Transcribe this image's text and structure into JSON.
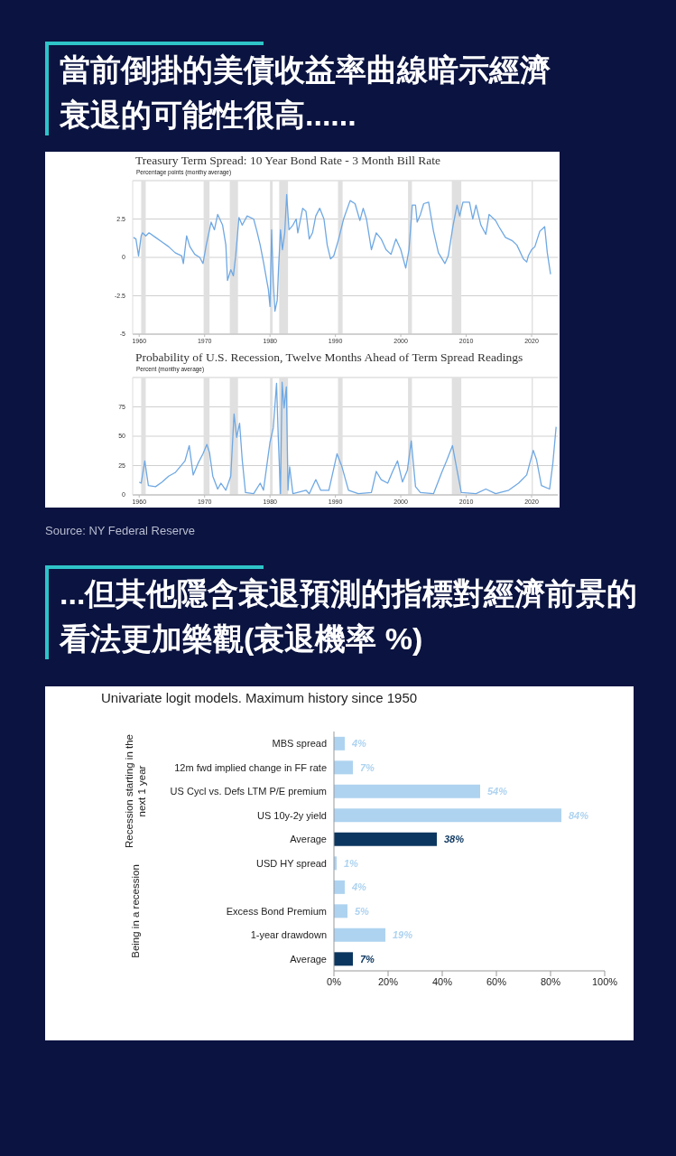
{
  "chart_data": [
    {
      "type": "line",
      "title": "當前倒掛的美債收益率曲線暗示經濟衰退的可能性很高......",
      "subtitle": "Treasury Term Spread: 10 Year Bond Rate - 3 Month Bill Rate",
      "ylabel": "Percentage points (monthy average)",
      "x": [
        1959.1,
        1959.5,
        1959.9,
        1960.3,
        1960.5,
        1961,
        1961.5,
        1962.5,
        1963.5,
        1964.5,
        1965.5,
        1966.5,
        1966.75,
        1967.25,
        1967.75,
        1968.5,
        1969.25,
        1969.75,
        1970.25,
        1971,
        1971.5,
        1972,
        1972.75,
        1973.25,
        1973.5,
        1974,
        1974.4,
        1974.75,
        1975.25,
        1975.75,
        1976.5,
        1977.5,
        1978,
        1978.5,
        1979,
        1979.75,
        1980,
        1980.25,
        1980.5,
        1980.75,
        1981.1,
        1981.3,
        1981.6,
        1981.9,
        1982.25,
        1982.55,
        1982.9,
        1983.5,
        1984,
        1984.25,
        1985,
        1985.5,
        1986,
        1986.5,
        1987,
        1987.6,
        1988.25,
        1988.75,
        1989.25,
        1989.75,
        1990.5,
        1991.25,
        1992.25,
        1993,
        1993.75,
        1994.25,
        1994.75,
        1995.5,
        1996.25,
        1997,
        1997.75,
        1998.5,
        1999.25,
        2000,
        2000.75,
        2001.25,
        2001.75,
        2002.25,
        2002.5,
        2003,
        2003.5,
        2004.25,
        2005,
        2005.75,
        2006.75,
        2007.25,
        2008,
        2008.6,
        2009,
        2009.5,
        2010.5,
        2011,
        2011.5,
        2012.25,
        2013,
        2013.5,
        2014.5,
        2015,
        2016,
        2017,
        2017.75,
        2018.75,
        2019.25,
        2019.5,
        2020,
        2020.5,
        2021.25,
        2022,
        2022.4,
        2022.9
      ],
      "series": [
        {
          "color": "#6fa8e3",
          "values": [
            1.3,
            1.2,
            0.1,
            1.4,
            1.6,
            1.4,
            1.6,
            1.3,
            1.0,
            0.7,
            0.3,
            0.1,
            -0.4,
            1.4,
            0.7,
            0.2,
            0.0,
            -0.4,
            0.8,
            2.3,
            1.8,
            2.8,
            2.1,
            0.8,
            -1.5,
            -0.8,
            -1.2,
            0.1,
            2.6,
            2.1,
            2.7,
            2.5,
            1.7,
            0.8,
            -0.3,
            -2.1,
            -3.2,
            1.8,
            -1.6,
            -3.5,
            -2.8,
            -0.8,
            1.8,
            0.5,
            1.6,
            4.1,
            1.8,
            2.1,
            2.5,
            1.6,
            3.2,
            3.0,
            1.2,
            1.6,
            2.7,
            3.2,
            2.5,
            0.8,
            -0.1,
            0.1,
            1.2,
            2.5,
            3.7,
            3.5,
            2.4,
            3.2,
            2.5,
            0.5,
            1.6,
            1.2,
            0.5,
            0.2,
            1.2,
            0.5,
            -0.7,
            0.5,
            3.4,
            3.4,
            2.3,
            2.8,
            3.5,
            3.6,
            1.7,
            0.3,
            -0.4,
            0.1,
            2.1,
            3.4,
            2.7,
            3.6,
            3.6,
            2.5,
            3.4,
            2.1,
            1.5,
            2.8,
            2.4,
            2.0,
            1.3,
            1.1,
            0.8,
            -0.1,
            -0.3,
            0.1,
            0.5,
            0.7,
            1.7,
            2.0,
            0.3,
            -1.1
          ]
        }
      ],
      "xlim": [
        1959,
        2024
      ],
      "xticks": [
        1960,
        1970,
        1980,
        1990,
        2000,
        2010,
        2020
      ],
      "ylim": [
        -5,
        5
      ],
      "yticks": [
        -5,
        -2.5,
        0,
        2.5
      ],
      "grid": "y",
      "bands": [
        {
          "axis": "x",
          "from": 1960.3,
          "to": 1961.0,
          "color": "#e0e0e0"
        },
        {
          "axis": "x",
          "from": 1969.85,
          "to": 1970.75,
          "color": "#e0e0e0"
        },
        {
          "axis": "x",
          "from": 1973.85,
          "to": 1975.1,
          "color": "#e0e0e0"
        },
        {
          "axis": "x",
          "from": 1980.0,
          "to": 1980.4,
          "color": "#e0e0e0"
        },
        {
          "axis": "x",
          "from": 1981.4,
          "to": 1982.75,
          "color": "#e0e0e0"
        },
        {
          "axis": "x",
          "from": 1990.4,
          "to": 1991.1,
          "color": "#e0e0e0"
        },
        {
          "axis": "x",
          "from": 2001.1,
          "to": 2001.7,
          "color": "#e0e0e0"
        },
        {
          "axis": "x",
          "from": 2007.8,
          "to": 2009.25,
          "color": "#e0e0e0"
        },
        {
          "axis": "x",
          "from": 2020.0,
          "to": 2020.2,
          "color": "#e0e0e0"
        }
      ]
    },
    {
      "type": "line",
      "title": "Probability of U.S. Recession, Twelve Months Ahead of Term Spread Readings",
      "ylabel": "Percent (monthy average)",
      "x": [
        1960,
        1960.3,
        1960.85,
        1961.4,
        1962.5,
        1963.5,
        1964.5,
        1965.5,
        1966.25,
        1967,
        1967.65,
        1968.25,
        1969,
        1969.75,
        1970.35,
        1970.75,
        1971.25,
        1972,
        1972.5,
        1973.25,
        1974,
        1974.5,
        1974.9,
        1975.35,
        1975.75,
        1976.25,
        1977.5,
        1978.5,
        1979,
        1980,
        1980.5,
        1981,
        1981.25,
        1981.6,
        1981.85,
        1982.15,
        1982.5,
        1982.75,
        1983,
        1983.5,
        1985.5,
        1986,
        1987,
        1987.75,
        1989,
        1990.25,
        1991,
        1992,
        1993.5,
        1995.5,
        1996.25,
        1997,
        1998,
        1998.75,
        1999.5,
        2000.25,
        2001,
        2001.6,
        2002.25,
        2003,
        2005,
        2006.25,
        2007,
        2007.9,
        2008.5,
        2009.25,
        2011.5,
        2013,
        2014.5,
        2016.5,
        2018,
        2019.25,
        2020.25,
        2020.75,
        2021.5,
        2022.75,
        2023.25,
        2023.75
      ],
      "series": [
        {
          "color": "#6fa8e3",
          "values": [
            11,
            10,
            29,
            8,
            7,
            11,
            16,
            19,
            24,
            29,
            42,
            17,
            27,
            35,
            43,
            36,
            16,
            5,
            10,
            4,
            16,
            69,
            49,
            61,
            30,
            2,
            1,
            10,
            4,
            45,
            57,
            95,
            51,
            1,
            96,
            74,
            92,
            4,
            24,
            1,
            4,
            1,
            13,
            4,
            4,
            35,
            24,
            4,
            1,
            2,
            20,
            13,
            10,
            20,
            29,
            11,
            21,
            46,
            7,
            2,
            1,
            19,
            29,
            42,
            24,
            2,
            1,
            5,
            1,
            4,
            10,
            17,
            38,
            30,
            8,
            5,
            27,
            58
          ]
        }
      ],
      "xlim": [
        1959,
        2024
      ],
      "xticks": [
        1960,
        1970,
        1980,
        1990,
        2000,
        2010,
        2020
      ],
      "ylim": [
        0,
        100
      ],
      "yticks": [
        0,
        25,
        50,
        75
      ],
      "grid": "y",
      "bands": [
        {
          "axis": "x",
          "from": 1960.3,
          "to": 1961.0,
          "color": "#e0e0e0"
        },
        {
          "axis": "x",
          "from": 1969.85,
          "to": 1970.75,
          "color": "#e0e0e0"
        },
        {
          "axis": "x",
          "from": 1973.85,
          "to": 1975.1,
          "color": "#e0e0e0"
        },
        {
          "axis": "x",
          "from": 1980.0,
          "to": 1980.4,
          "color": "#e0e0e0"
        },
        {
          "axis": "x",
          "from": 1981.4,
          "to": 1982.75,
          "color": "#e0e0e0"
        },
        {
          "axis": "x",
          "from": 1990.4,
          "to": 1991.1,
          "color": "#e0e0e0"
        },
        {
          "axis": "x",
          "from": 2001.1,
          "to": 2001.7,
          "color": "#e0e0e0"
        },
        {
          "axis": "x",
          "from": 2007.8,
          "to": 2009.25,
          "color": "#e0e0e0"
        },
        {
          "axis": "x",
          "from": 2020.0,
          "to": 2020.2,
          "color": "#e0e0e0"
        }
      ],
      "annotations": [
        "Source: NY Federal Reserve"
      ]
    },
    {
      "type": "bar",
      "orientation": "horizontal",
      "title": "...但其他隱含衰退預測的指標對經濟前景的看法更加樂觀(衰退機率 %)",
      "subtitle": "Univariate logit models. Maximum history since 1950",
      "categories": [
        "MBS spread",
        "12m fwd implied change in FF rate",
        "US Cycl vs. Defs LTM P/E premium",
        "US 10y-2y yield",
        "Average",
        "USD HY spread",
        null,
        "Excess Bond Premium",
        "1-year drawdown",
        "Average"
      ],
      "values": [
        4,
        7,
        54,
        84,
        38,
        1,
        4,
        5,
        19,
        7
      ],
      "colors": [
        "#aed3f0",
        "#aed3f0",
        "#aed3f0",
        "#aed3f0",
        "#0b365f",
        "#aed3f0",
        "#aed3f0",
        "#aed3f0",
        "#aed3f0",
        "#0b365f"
      ],
      "value_labels": [
        "4%",
        "7%",
        "54%",
        "84%",
        "38%",
        "1%",
        "4%",
        "5%",
        "19%",
        "7%"
      ],
      "xlim": [
        0,
        100
      ],
      "xticks": [
        {
          "value": 0,
          "label": "0%"
        },
        {
          "value": 20,
          "label": "20%"
        },
        {
          "value": 40,
          "label": "40%"
        },
        {
          "value": 60,
          "label": "60%"
        },
        {
          "value": 80,
          "label": "80%"
        },
        {
          "value": 100,
          "label": "100%"
        }
      ],
      "annotations": [
        "Recession starting in the next 1 year",
        "Being in a recession"
      ]
    }
  ]
}
